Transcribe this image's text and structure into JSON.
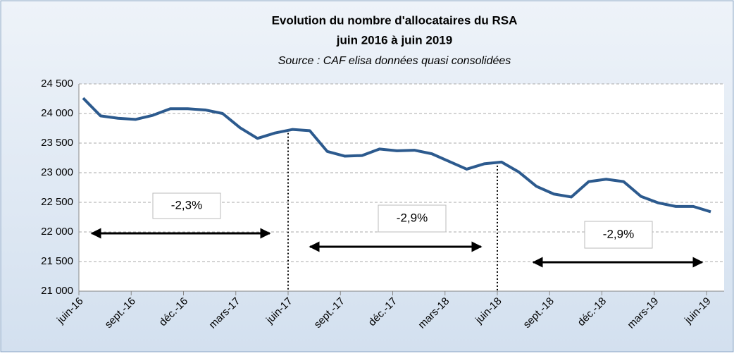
{
  "chart_data": {
    "type": "line",
    "title": "Evolution du nombre d'allocataires du RSA",
    "subtitle": "juin 2016 à juin 2019",
    "source": "Source : CAF elisa données quasi consolidées",
    "categories": [
      "juin-16",
      null,
      null,
      "sept.-16",
      null,
      null,
      "déc.-16",
      null,
      null,
      "mars-17",
      null,
      null,
      "juin-17",
      null,
      null,
      "sept.-17",
      null,
      null,
      "déc.-17",
      null,
      null,
      "mars-18",
      null,
      null,
      "juin-18",
      null,
      null,
      "sept.-18",
      null,
      null,
      "déc.-18",
      null,
      null,
      "mars-19",
      null,
      null,
      "juin-19"
    ],
    "series": [
      {
        "color": "#2c5a8e",
        "values": [
          24260,
          23960,
          23920,
          23900,
          23970,
          24080,
          24080,
          24060,
          24000,
          23760,
          23580,
          23670,
          23730,
          23710,
          23360,
          23280,
          23290,
          23400,
          23370,
          23380,
          23320,
          23190,
          23060,
          23150,
          23180,
          23010,
          22770,
          22640,
          22590,
          22850,
          22890,
          22850,
          22600,
          22490,
          22430,
          22430,
          22340
        ]
      }
    ],
    "ylim": [
      21000,
      24500
    ],
    "yticks": [
      {
        "value": 21000,
        "label": "21 000"
      },
      {
        "value": 21500,
        "label": "21 500"
      },
      {
        "value": 22000,
        "label": "22 000"
      },
      {
        "value": 22500,
        "label": "22 500"
      },
      {
        "value": 23000,
        "label": "23 000"
      },
      {
        "value": 23500,
        "label": "23 500"
      },
      {
        "value": 24000,
        "label": "24 000"
      },
      {
        "value": 24500,
        "label": "24 500"
      }
    ],
    "grid": true,
    "annotations": [
      "-2,3%",
      "-2,9%",
      "-2,9%"
    ]
  }
}
